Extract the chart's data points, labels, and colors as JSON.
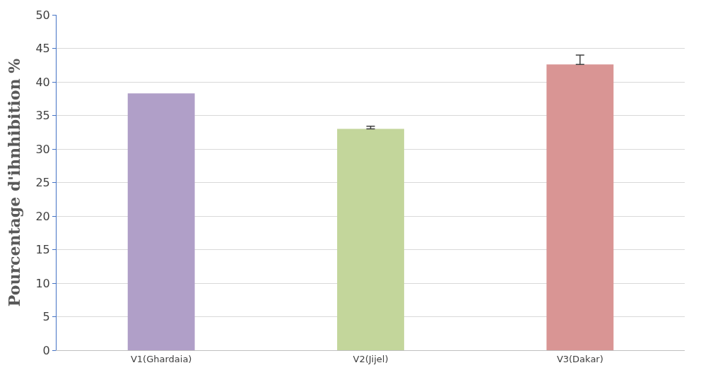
{
  "chart_data": {
    "type": "bar",
    "ylabel": "Pourcentage d'ihnhibition %",
    "categories": [
      "V1(Ghardaia)",
      "V2(Jijel)",
      "V3(Dakar)"
    ],
    "values": [
      38.3,
      33.0,
      42.6
    ],
    "errors": [
      null,
      [
        33.0,
        33.4
      ],
      [
        42.6,
        44.0
      ]
    ],
    "colors": [
      "#b09fc8",
      "#c3d69b",
      "#d99594"
    ],
    "ylim": [
      0,
      50
    ],
    "yticks": [
      0,
      5,
      10,
      15,
      20,
      25,
      30,
      35,
      40,
      45,
      50
    ],
    "grid": "y"
  }
}
